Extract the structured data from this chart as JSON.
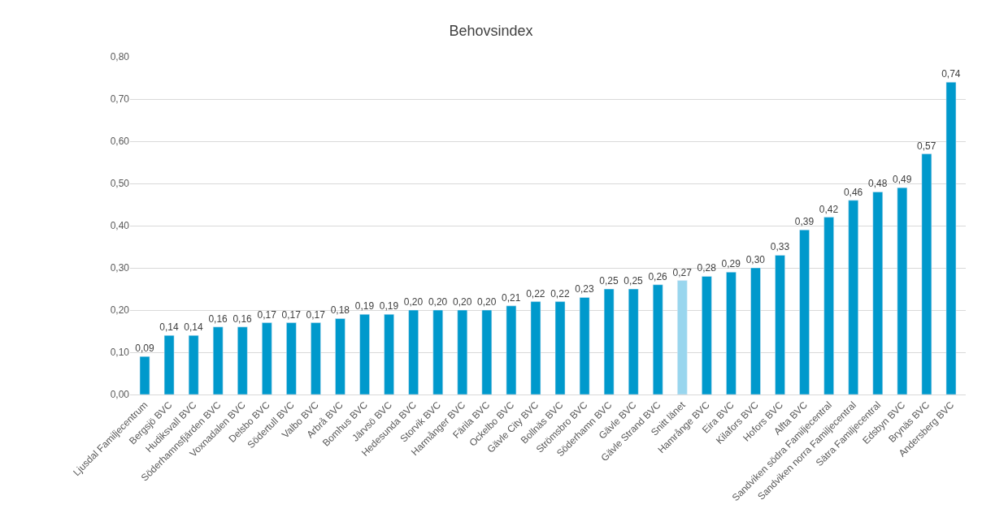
{
  "chart_data": {
    "type": "bar",
    "title": "Behovsindex",
    "categories": [
      "Ljusdal Familjecentrum",
      "Bergsjö BVC",
      "Hudiksvall BVC",
      "Söderhamnsfjärden BVC",
      "Voxnadalen BVC",
      "Delsbo BVC",
      "Södertull BVC",
      "Valbo BVC",
      "Arbrå BVC",
      "Bomhus BVC",
      "Järvsö BVC",
      "Hedesunda BVC",
      "Storvik BVC",
      "Harmånger BVC",
      "Färila BVC",
      "Ockelbo BVC",
      "Gävle City BVC",
      "Bollnäs BVC",
      "Strömsbro BVC",
      "Söderhamn BVC",
      "Gävle BVC",
      "Gävle Strand BVC",
      "Snitt länet",
      "Hamrånge BVC",
      "Eira BVC",
      "Kilafors BVC",
      "Hofors BVC",
      "Alfta BVC",
      "Sandviken södra Familjecentral",
      "Sandviken norra Familjecentral",
      "Sätra Familjecentral",
      "Edsbyn BVC",
      "Brynäs BVC",
      "Andersberg BVC"
    ],
    "values": [
      0.09,
      0.14,
      0.14,
      0.16,
      0.16,
      0.17,
      0.17,
      0.17,
      0.18,
      0.19,
      0.19,
      0.2,
      0.2,
      0.2,
      0.2,
      0.21,
      0.22,
      0.22,
      0.23,
      0.25,
      0.25,
      0.26,
      0.27,
      0.28,
      0.29,
      0.3,
      0.33,
      0.39,
      0.42,
      0.46,
      0.48,
      0.49,
      0.57,
      0.74
    ],
    "value_labels": [
      "0,09",
      "0,14",
      "0,14",
      "0,16",
      "0,16",
      "0,17",
      "0,17",
      "0,17",
      "0,18",
      "0,19",
      "0,19",
      "0,20",
      "0,20",
      "0,20",
      "0,20",
      "0,21",
      "0,22",
      "0,22",
      "0,23",
      "0,25",
      "0,25",
      "0,26",
      "0,27",
      "0,28",
      "0,29",
      "0,30",
      "0,33",
      "0,39",
      "0,42",
      "0,46",
      "0,48",
      "0,49",
      "0,57",
      "0,74"
    ],
    "colors": [
      "#0099cc",
      "#0099cc",
      "#0099cc",
      "#0099cc",
      "#0099cc",
      "#0099cc",
      "#0099cc",
      "#0099cc",
      "#0099cc",
      "#0099cc",
      "#0099cc",
      "#0099cc",
      "#0099cc",
      "#0099cc",
      "#0099cc",
      "#0099cc",
      "#0099cc",
      "#0099cc",
      "#0099cc",
      "#0099cc",
      "#0099cc",
      "#0099cc",
      "#99d6ee",
      "#0099cc",
      "#0099cc",
      "#0099cc",
      "#0099cc",
      "#0099cc",
      "#0099cc",
      "#0099cc",
      "#0099cc",
      "#0099cc",
      "#0099cc",
      "#0099cc"
    ],
    "ylim": [
      0,
      0.8
    ],
    "yticks": [
      {
        "value": 0,
        "label": "0,00"
      },
      {
        "value": 0.1,
        "label": "0,10"
      },
      {
        "value": 0.2,
        "label": "0,20"
      },
      {
        "value": 0.3,
        "label": "0,30"
      },
      {
        "value": 0.4,
        "label": "0,40"
      },
      {
        "value": 0.5,
        "label": "0,50"
      },
      {
        "value": 0.6,
        "label": "0,60"
      },
      {
        "value": 0.7,
        "label": "0,70"
      },
      {
        "value": 0.8,
        "label": "0,80"
      }
    ],
    "grid": "y"
  }
}
